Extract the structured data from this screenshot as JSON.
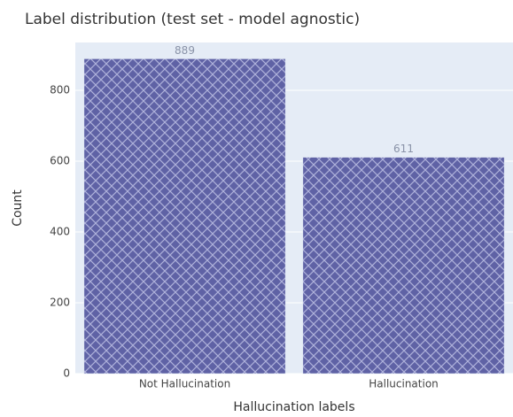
{
  "chart_data": {
    "type": "bar",
    "title": "Label distribution (test set - model agnostic)",
    "x_label": "Hallucination labels",
    "y_label": "Count",
    "categories": [
      "Not Hallucination",
      "Hallucination"
    ],
    "values": [
      889,
      611
    ],
    "color": "#5f62a5",
    "pattern": "cross-hatch",
    "ylim": [
      0,
      935
    ],
    "yticks": [
      0,
      200,
      400,
      600,
      800
    ],
    "grid": true
  }
}
